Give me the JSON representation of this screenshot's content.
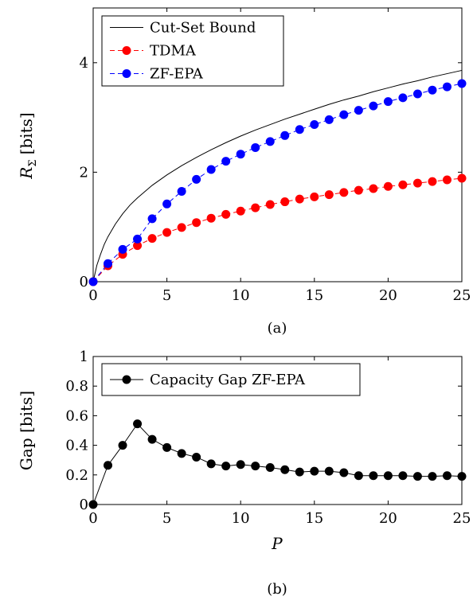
{
  "chart_data": [
    {
      "type": "line",
      "caption": "(a)",
      "ylabel_main": "R",
      "ylabel_sub": "Σ",
      "ylabel_unit": "[bits]",
      "xlim": [
        0,
        25
      ],
      "ylim": [
        0,
        5
      ],
      "x_ticks": [
        0,
        5,
        10,
        15,
        20,
        25
      ],
      "y_ticks": [
        0,
        2,
        4
      ],
      "grid": false,
      "legend_position": "top-left",
      "series": [
        {
          "name": "Cut-Set Bound",
          "color": "#000000",
          "marker": "none",
          "dashed": false,
          "x": [
            0,
            0.25,
            0.5,
            0.75,
            1,
            1.5,
            2,
            2.5,
            3,
            4,
            5,
            6,
            7,
            8,
            9,
            10,
            11,
            12,
            13,
            14,
            15,
            16,
            17,
            18,
            19,
            20,
            21,
            22,
            23,
            24,
            25
          ],
          "y": [
            0,
            0.3,
            0.5,
            0.68,
            0.82,
            1.05,
            1.24,
            1.4,
            1.53,
            1.76,
            1.95,
            2.12,
            2.27,
            2.41,
            2.54,
            2.66,
            2.77,
            2.87,
            2.97,
            3.06,
            3.15,
            3.24,
            3.32,
            3.39,
            3.47,
            3.54,
            3.61,
            3.67,
            3.74,
            3.8,
            3.86
          ]
        },
        {
          "name": "TDMA",
          "color": "#ff0000",
          "marker": "circle",
          "dashed": true,
          "x": [
            0,
            1,
            2,
            3,
            4,
            5,
            6,
            7,
            8,
            9,
            10,
            11,
            12,
            13,
            14,
            15,
            16,
            17,
            18,
            19,
            20,
            21,
            22,
            23,
            24,
            25
          ],
          "y": [
            0,
            0.29,
            0.5,
            0.66,
            0.79,
            0.9,
            0.99,
            1.08,
            1.16,
            1.23,
            1.29,
            1.35,
            1.41,
            1.46,
            1.51,
            1.55,
            1.59,
            1.63,
            1.67,
            1.7,
            1.74,
            1.77,
            1.8,
            1.83,
            1.86,
            1.89
          ]
        },
        {
          "name": "ZF-EPA",
          "color": "#0000ff",
          "marker": "circle",
          "dashed": true,
          "x": [
            0,
            1,
            2,
            3,
            4,
            5,
            6,
            7,
            8,
            9,
            10,
            11,
            12,
            13,
            14,
            15,
            16,
            17,
            18,
            19,
            20,
            21,
            22,
            23,
            24,
            25
          ],
          "y": [
            0,
            0.33,
            0.59,
            0.78,
            1.15,
            1.42,
            1.65,
            1.87,
            2.05,
            2.2,
            2.33,
            2.45,
            2.56,
            2.67,
            2.78,
            2.87,
            2.96,
            3.05,
            3.13,
            3.21,
            3.29,
            3.36,
            3.43,
            3.5,
            3.56,
            3.62
          ]
        }
      ]
    },
    {
      "type": "line",
      "caption": "(b)",
      "ylabel": "Gap [bits]",
      "xlabel": "P",
      "xlim": [
        0,
        25
      ],
      "ylim": [
        0,
        1
      ],
      "x_ticks": [
        0,
        5,
        10,
        15,
        20,
        25
      ],
      "y_ticks": [
        0,
        0.2,
        0.4,
        0.6,
        0.8,
        1
      ],
      "grid": false,
      "legend_position": "top-left",
      "series": [
        {
          "name": "Capacity Gap ZF-EPA",
          "color": "#000000",
          "marker": "circle",
          "dashed": false,
          "x": [
            0,
            1,
            2,
            3,
            4,
            5,
            6,
            7,
            8,
            9,
            10,
            11,
            12,
            13,
            14,
            15,
            16,
            17,
            18,
            19,
            20,
            21,
            22,
            23,
            24,
            25
          ],
          "y": [
            0,
            0.265,
            0.4,
            0.545,
            0.44,
            0.385,
            0.345,
            0.32,
            0.275,
            0.26,
            0.27,
            0.26,
            0.25,
            0.235,
            0.22,
            0.225,
            0.225,
            0.215,
            0.195,
            0.195,
            0.195,
            0.195,
            0.19,
            0.19,
            0.195,
            0.19
          ]
        }
      ]
    }
  ]
}
